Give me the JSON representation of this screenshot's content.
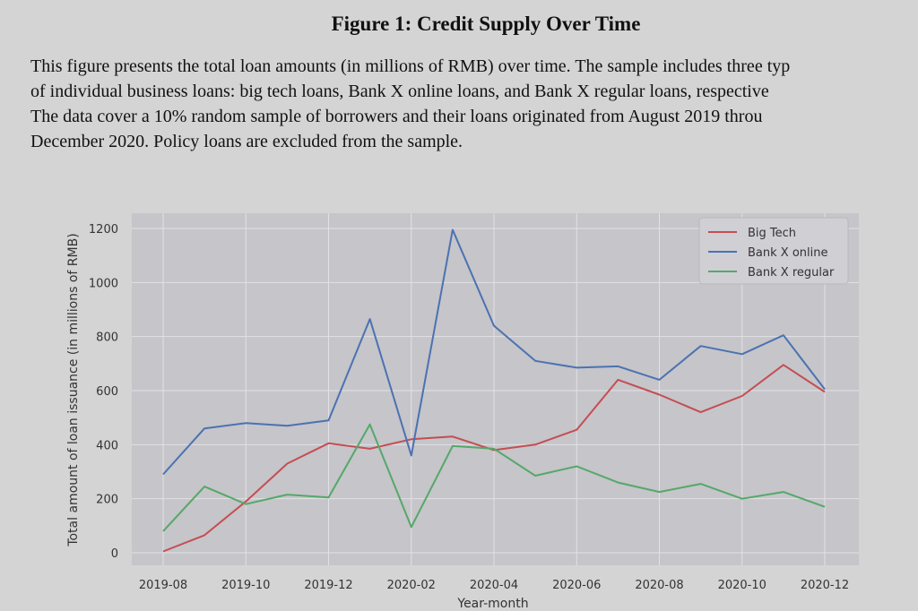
{
  "paper": {
    "figure_title": "Figure 1: Credit Supply Over Time",
    "caption_lines": [
      "This figure presents the total loan amounts (in millions of RMB) over time. The sample includes three typ",
      "of individual business loans: big tech loans, Bank X online loans, and Bank X regular loans, respective",
      "The data cover a 10% random sample of borrowers and their loans originated from August 2019 throu",
      "December 2020. Policy loans are excluded from the sample."
    ]
  },
  "chart_data": {
    "type": "line",
    "title": "",
    "xlabel": "Year-month",
    "ylabel": "Total amount of loan issuance (in millions of RMB)",
    "x": [
      "2019-08",
      "2019-09",
      "2019-10",
      "2019-11",
      "2019-12",
      "2020-01",
      "2020-02",
      "2020-03",
      "2020-04",
      "2020-05",
      "2020-06",
      "2020-07",
      "2020-08",
      "2020-09",
      "2020-10",
      "2020-11",
      "2020-12"
    ],
    "x_tick_labels": [
      "2019-08",
      "2019-10",
      "2019-12",
      "2020-02",
      "2020-04",
      "2020-06",
      "2020-08",
      "2020-10",
      "2020-12"
    ],
    "y_ticks": [
      0,
      200,
      400,
      600,
      800,
      1000,
      1200
    ],
    "ylim": [
      -50,
      1250
    ],
    "grid": true,
    "legend_position": "top-right",
    "series": [
      {
        "name": "Big Tech",
        "color": "#c44e52",
        "values": [
          5,
          65,
          190,
          330,
          405,
          385,
          420,
          430,
          380,
          400,
          455,
          640,
          585,
          520,
          580,
          695,
          595
        ]
      },
      {
        "name": "Bank X online",
        "color": "#4c72b0",
        "values": [
          290,
          460,
          480,
          470,
          490,
          865,
          360,
          1195,
          840,
          710,
          685,
          690,
          640,
          765,
          735,
          805,
          605
        ]
      },
      {
        "name": "Bank X regular",
        "color": "#55a868",
        "values": [
          80,
          245,
          180,
          215,
          205,
          475,
          95,
          395,
          385,
          285,
          320,
          260,
          225,
          255,
          200,
          225,
          170
        ]
      }
    ]
  }
}
